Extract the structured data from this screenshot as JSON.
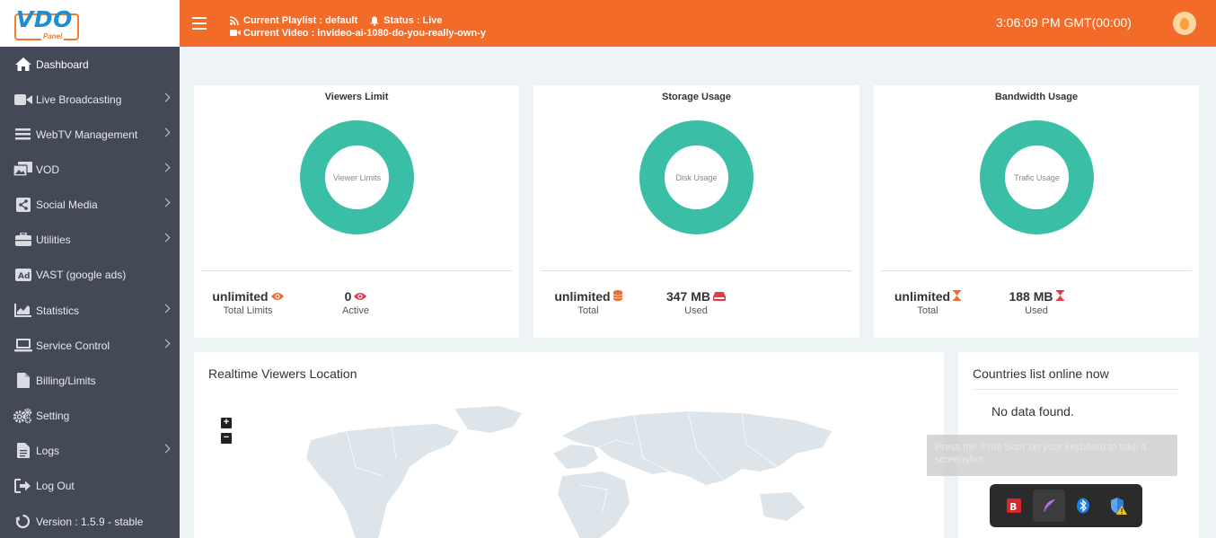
{
  "logo": {
    "brand": "VDO",
    "sub": "Panel"
  },
  "topbar": {
    "playlist": "Current Playlist : default",
    "status": "Status : Live",
    "video": "Current Video : invideo-ai-1080-do-you-really-own-y",
    "clock": "3:06:09 PM GMT(00:00)"
  },
  "sidebar": {
    "items": [
      {
        "label": "Dashboard",
        "icon": "home-icon",
        "chevron": false
      },
      {
        "label": "Live Broadcasting",
        "icon": "video-camera-icon",
        "chevron": true
      },
      {
        "label": "WebTV Management",
        "icon": "menu-lines-icon",
        "chevron": true
      },
      {
        "label": "VOD",
        "icon": "photo-film-icon",
        "chevron": true
      },
      {
        "label": "Social Media",
        "icon": "share-icon",
        "chevron": true
      },
      {
        "label": "Utilities",
        "icon": "toolbox-icon",
        "chevron": true
      },
      {
        "label": "VAST (google ads)",
        "icon": "ad-icon",
        "chevron": false
      },
      {
        "label": "Statistics",
        "icon": "area-chart-icon",
        "chevron": true
      },
      {
        "label": "Service Control",
        "icon": "laptop-icon",
        "chevron": true
      },
      {
        "label": "Billing/Limits",
        "icon": "file-icon",
        "chevron": false
      },
      {
        "label": "Setting",
        "icon": "gears-icon",
        "chevron": false
      },
      {
        "label": "Logs",
        "icon": "file-text-icon",
        "chevron": true
      },
      {
        "label": "Log Out",
        "icon": "sign-out-icon",
        "chevron": false
      },
      {
        "label": "Version : 1.5.9 - stable",
        "icon": "recycle-icon",
        "chevron": false
      }
    ]
  },
  "cards": [
    {
      "title": "Viewers Limit",
      "center": "Viewer Limits",
      "stats": [
        {
          "value": "unlimited",
          "caption": "Total Limits",
          "icon": "eye-icon",
          "color": "#f26b29"
        },
        {
          "value": "0",
          "caption": "Active",
          "icon": "eye-icon",
          "color": "#e03b4b"
        }
      ]
    },
    {
      "title": "Storage Usage",
      "center": "Disk Usage",
      "stats": [
        {
          "value": "unlimited",
          "caption": "Total",
          "icon": "database-icon",
          "color": "#f26b29"
        },
        {
          "value": "347 MB",
          "caption": "Used",
          "icon": "hdd-icon",
          "color": "#e03b4b"
        }
      ]
    },
    {
      "title": "Bandwidth Usage",
      "center": "Trafic Usage",
      "stats": [
        {
          "value": "unlimited",
          "caption": "Total",
          "icon": "hourglass-icon",
          "color": "#f26b29"
        },
        {
          "value": "188 MB",
          "caption": "Used",
          "icon": "hourglass-icon",
          "color": "#e03b4b"
        }
      ]
    }
  ],
  "map": {
    "title": "Realtime Viewers Location",
    "zoom_in": "+",
    "zoom_out": "−"
  },
  "countries": {
    "title": "Countries list online now",
    "empty": "No data found."
  },
  "toast": {
    "text": "Press the 'Print Scrn' on your keyboard to take a screenshot"
  },
  "colors": {
    "accent": "#f26b29",
    "sidebar": "#434956",
    "donut": "#3abfa6"
  }
}
